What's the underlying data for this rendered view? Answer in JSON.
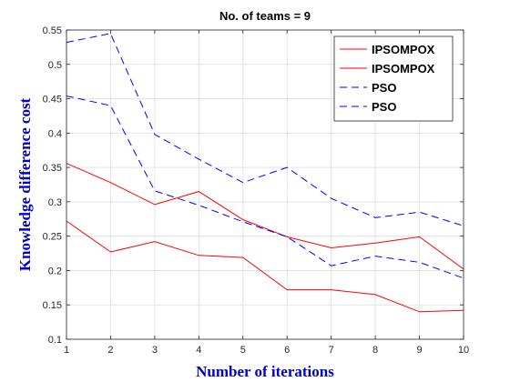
{
  "chart_data": {
    "type": "line",
    "title": "No. of teams = 9",
    "xlabel": "Number of iterations",
    "ylabel": "Knowledge difference cost",
    "xlim": [
      1,
      10
    ],
    "ylim": [
      0.1,
      0.55
    ],
    "x": [
      1,
      2,
      3,
      4,
      5,
      6,
      7,
      8,
      9,
      10
    ],
    "xticks": [
      "1",
      "2",
      "3",
      "4",
      "5",
      "6",
      "7",
      "8",
      "9",
      "10"
    ],
    "yticks": [
      "0.1",
      "0.15",
      "0.2",
      "0.25",
      "0.3",
      "0.35",
      "0.4",
      "0.45",
      "0.5",
      "0.55"
    ],
    "grid": true,
    "legend_position": "top-right",
    "label_color": "#0000cc",
    "series": [
      {
        "name": "IPSOMPOX",
        "color": "#ff0000",
        "style": "solid",
        "values": [
          0.356,
          0.328,
          0.296,
          0.315,
          0.274,
          0.249,
          0.233,
          0.24,
          0.249,
          0.202
        ]
      },
      {
        "name": "IPSOMPOX",
        "color": "#ff0000",
        "style": "solid",
        "values": [
          0.272,
          0.227,
          0.242,
          0.222,
          0.219,
          0.172,
          0.172,
          0.165,
          0.14,
          0.142
        ]
      },
      {
        "name": "PSO",
        "color": "#0000ff",
        "style": "dashed",
        "values": [
          0.532,
          0.545,
          0.398,
          0.362,
          0.328,
          0.35,
          0.305,
          0.277,
          0.285,
          0.265
        ]
      },
      {
        "name": "PSO",
        "color": "#0000ff",
        "style": "dashed",
        "values": [
          0.454,
          0.44,
          0.316,
          0.295,
          0.271,
          0.249,
          0.207,
          0.221,
          0.212,
          0.189
        ]
      }
    ]
  }
}
